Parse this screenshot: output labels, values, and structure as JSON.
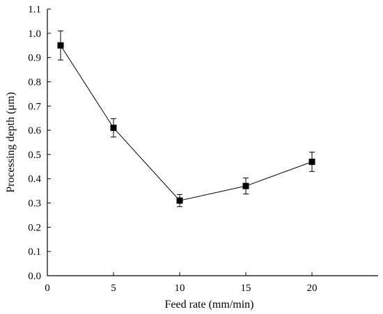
{
  "chart_data": {
    "type": "line",
    "title": "",
    "xlabel": "Feed rate (mm/min)",
    "ylabel": "Processing depth (μm)",
    "xlim": [
      0,
      25
    ],
    "ylim": [
      0,
      1.1
    ],
    "xticks": [
      0,
      5,
      10,
      15,
      20
    ],
    "xtick_labels": [
      "0",
      "5",
      "10",
      "15",
      "20"
    ],
    "yticks": [
      0.0,
      0.1,
      0.2,
      0.3,
      0.4,
      0.5,
      0.6,
      0.7,
      0.8,
      0.9,
      1.0,
      1.1
    ],
    "ytick_labels": [
      "0.0",
      "0.1",
      "0.2",
      "0.3",
      "0.4",
      "0.5",
      "0.6",
      "0.7",
      "0.8",
      "0.9",
      "1.0",
      "1.1"
    ],
    "grid": false,
    "legend": "none",
    "series": [
      {
        "x": [
          1,
          5,
          10,
          15,
          20
        ],
        "y": [
          0.95,
          0.61,
          0.31,
          0.37,
          0.47
        ],
        "error": [
          0.06,
          0.038,
          0.025,
          0.033,
          0.04
        ],
        "marker": "square",
        "color": "#000000"
      }
    ]
  }
}
